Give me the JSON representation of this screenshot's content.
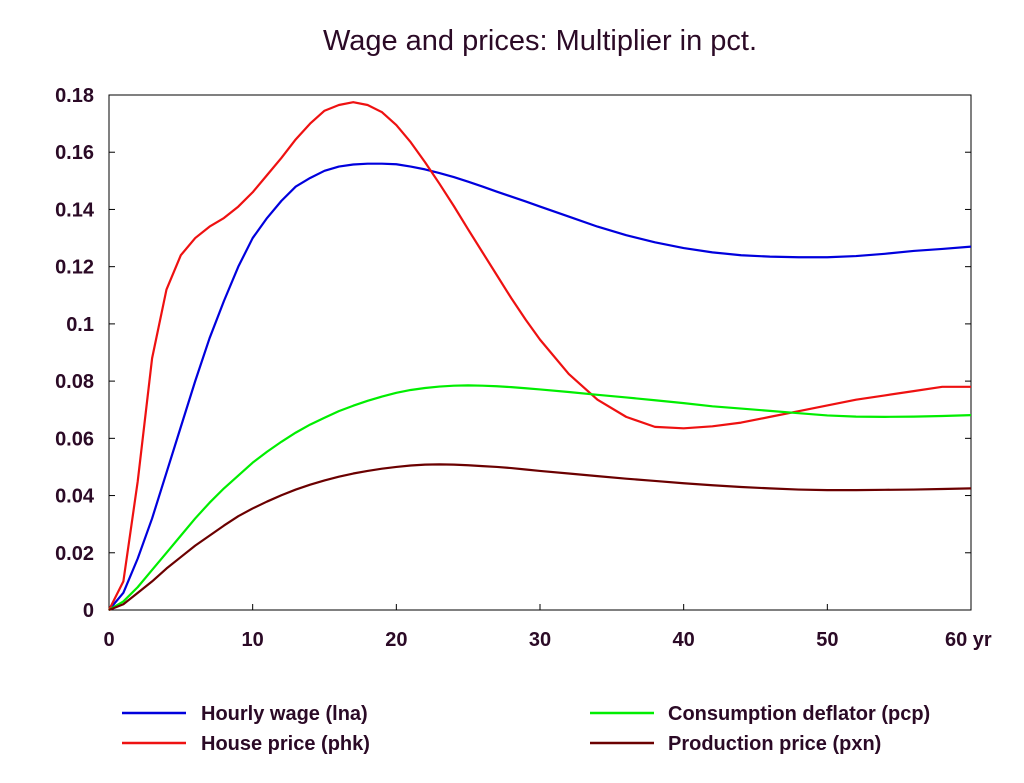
{
  "chart_data": {
    "type": "line",
    "title": "Wage and prices: Multiplier in pct.",
    "xlim": [
      0,
      60
    ],
    "ylim": [
      0,
      0.18
    ],
    "x_ticks": [
      0,
      10,
      20,
      30,
      40,
      50,
      60
    ],
    "x_tick_labels": [
      "0",
      "10",
      "20",
      "30",
      "40",
      "50",
      "60 yr"
    ],
    "y_ticks": [
      0,
      0.02,
      0.04,
      0.06,
      0.08,
      0.1,
      0.12,
      0.14,
      0.16,
      0.18
    ],
    "y_tick_labels": [
      "0",
      "0.02",
      "0.04",
      "0.06",
      "0.08",
      "0.1",
      "0.12",
      "0.14",
      "0.16",
      "0.18"
    ],
    "grid": false,
    "legend_position": "bottom",
    "series": [
      {
        "name": "Hourly wage (lna)",
        "color": "#0000dd",
        "x": [
          0,
          1,
          2,
          3,
          4,
          5,
          6,
          7,
          8,
          9,
          10,
          11,
          12,
          13,
          14,
          15,
          16,
          17,
          18,
          19,
          20,
          21,
          22,
          23,
          24,
          25,
          26,
          27,
          28,
          29,
          30,
          32,
          34,
          36,
          38,
          40,
          42,
          44,
          46,
          48,
          50,
          52,
          54,
          56,
          58,
          60
        ],
        "y": [
          0,
          0.006,
          0.018,
          0.032,
          0.048,
          0.064,
          0.08,
          0.095,
          0.108,
          0.12,
          0.13,
          0.137,
          0.143,
          0.148,
          0.151,
          0.1535,
          0.155,
          0.1557,
          0.156,
          0.156,
          0.1558,
          0.155,
          0.154,
          0.1527,
          0.1513,
          0.1497,
          0.148,
          0.1462,
          0.1445,
          0.1428,
          0.141,
          0.1375,
          0.134,
          0.131,
          0.1285,
          0.1265,
          0.125,
          0.124,
          0.1235,
          0.1233,
          0.1233,
          0.1237,
          0.1245,
          0.1255,
          0.1262,
          0.127
        ]
      },
      {
        "name": "House price (phk)",
        "color": "#ee1111",
        "x": [
          0,
          1,
          2,
          3,
          4,
          5,
          6,
          7,
          8,
          9,
          10,
          11,
          12,
          13,
          14,
          15,
          16,
          17,
          18,
          19,
          20,
          21,
          22,
          23,
          24,
          25,
          26,
          27,
          28,
          29,
          30,
          32,
          34,
          36,
          38,
          40,
          42,
          44,
          46,
          48,
          50,
          52,
          54,
          56,
          58,
          60
        ],
        "y": [
          0,
          0.01,
          0.045,
          0.088,
          0.112,
          0.124,
          0.13,
          0.134,
          0.137,
          0.141,
          0.146,
          0.152,
          0.158,
          0.1645,
          0.17,
          0.1745,
          0.1765,
          0.1775,
          0.1765,
          0.174,
          0.1695,
          0.1635,
          0.1565,
          0.149,
          0.1412,
          0.133,
          0.125,
          0.117,
          0.109,
          0.1015,
          0.0945,
          0.0825,
          0.0735,
          0.0675,
          0.064,
          0.0635,
          0.0642,
          0.0655,
          0.0675,
          0.0695,
          0.0715,
          0.0735,
          0.075,
          0.0765,
          0.078,
          0.078
        ]
      },
      {
        "name": "Consumption deflator (pcp)",
        "color": "#00ee00",
        "x": [
          0,
          1,
          2,
          3,
          4,
          5,
          6,
          7,
          8,
          9,
          10,
          11,
          12,
          13,
          14,
          15,
          16,
          17,
          18,
          19,
          20,
          21,
          22,
          23,
          24,
          25,
          26,
          27,
          28,
          29,
          30,
          32,
          34,
          36,
          38,
          40,
          42,
          44,
          46,
          48,
          50,
          52,
          54,
          56,
          58,
          60
        ],
        "y": [
          0,
          0.003,
          0.008,
          0.014,
          0.02,
          0.026,
          0.032,
          0.0375,
          0.0425,
          0.047,
          0.0515,
          0.0553,
          0.0588,
          0.062,
          0.0648,
          0.0672,
          0.0695,
          0.0714,
          0.0731,
          0.0746,
          0.0759,
          0.0769,
          0.0776,
          0.0781,
          0.0784,
          0.0785,
          0.0784,
          0.0782,
          0.0779,
          0.0775,
          0.0771,
          0.0762,
          0.0752,
          0.0743,
          0.0733,
          0.0723,
          0.0712,
          0.0704,
          0.0696,
          0.0688,
          0.068,
          0.0676,
          0.0675,
          0.0676,
          0.0678,
          0.0681
        ]
      },
      {
        "name": "Production price (pxn)",
        "color": "#6b0000",
        "x": [
          0,
          1,
          2,
          3,
          4,
          5,
          6,
          7,
          8,
          9,
          10,
          11,
          12,
          13,
          14,
          15,
          16,
          17,
          18,
          19,
          20,
          21,
          22,
          23,
          24,
          25,
          26,
          27,
          28,
          29,
          30,
          32,
          34,
          36,
          38,
          40,
          42,
          44,
          46,
          48,
          50,
          52,
          54,
          56,
          58,
          60
        ],
        "y": [
          0,
          0.002,
          0.006,
          0.01,
          0.0145,
          0.0185,
          0.0225,
          0.026,
          0.0295,
          0.0328,
          0.0355,
          0.0379,
          0.0401,
          0.0421,
          0.0438,
          0.0453,
          0.0466,
          0.0477,
          0.0486,
          0.0494,
          0.05,
          0.0505,
          0.0508,
          0.0509,
          0.0508,
          0.0506,
          0.0503,
          0.05,
          0.0496,
          0.0491,
          0.0486,
          0.0477,
          0.0468,
          0.0459,
          0.0451,
          0.0443,
          0.0436,
          0.043,
          0.0425,
          0.0421,
          0.0419,
          0.0419,
          0.042,
          0.0421,
          0.0423,
          0.0425
        ]
      }
    ]
  }
}
